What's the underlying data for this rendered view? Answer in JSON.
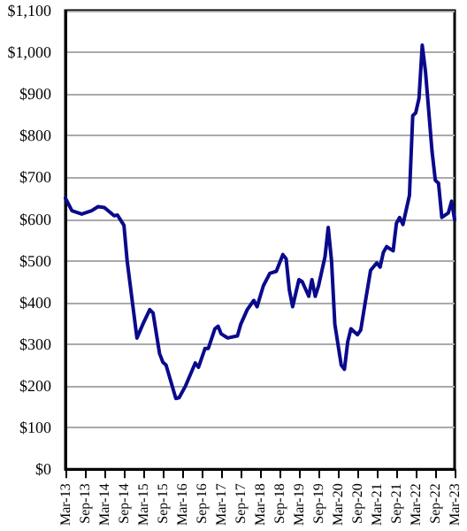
{
  "chart_data": {
    "type": "line",
    "x": [
      "2013-03",
      "2013-05",
      "2013-08",
      "2013-11",
      "2014-01",
      "2014-03",
      "2014-06",
      "2014-07",
      "2014-09",
      "2014-10",
      "2015-01",
      "2015-03",
      "2015-05",
      "2015-06",
      "2015-08",
      "2015-09",
      "2015-10",
      "2016-01",
      "2016-02",
      "2016-04",
      "2016-07",
      "2016-08",
      "2016-10",
      "2016-11",
      "2017-01",
      "2017-02",
      "2017-03",
      "2017-05",
      "2017-08",
      "2017-09",
      "2017-11",
      "2018-01",
      "2018-02",
      "2018-04",
      "2018-06",
      "2018-08",
      "2018-10",
      "2018-11",
      "2018-12",
      "2019-01",
      "2019-03",
      "2019-04",
      "2019-06",
      "2019-07",
      "2019-08",
      "2019-09",
      "2019-11",
      "2019-12",
      "2020-01",
      "2020-02",
      "2020-04",
      "2020-05",
      "2020-06",
      "2020-07",
      "2020-09",
      "2020-10",
      "2020-11",
      "2021-01",
      "2021-03",
      "2021-04",
      "2021-05",
      "2021-06",
      "2021-08",
      "2021-09",
      "2021-10",
      "2021-11",
      "2022-01",
      "2022-02",
      "2022-03",
      "2022-04",
      "2022-05",
      "2022-06",
      "2022-08",
      "2022-09",
      "2022-10",
      "2022-11",
      "2023-01",
      "2023-02",
      "2023-03"
    ],
    "series": [
      {
        "color": "#0a0a8c",
        "values": [
          650,
          620,
          612,
          620,
          630,
          628,
          608,
          610,
          585,
          500,
          315,
          350,
          383,
          375,
          278,
          257,
          250,
          170,
          172,
          200,
          255,
          245,
          290,
          290,
          337,
          343,
          325,
          315,
          320,
          348,
          383,
          405,
          390,
          440,
          470,
          475,
          515,
          505,
          430,
          390,
          455,
          450,
          415,
          455,
          415,
          440,
          510,
          580,
          500,
          348,
          250,
          240,
          306,
          337,
          323,
          334,
          383,
          477,
          495,
          485,
          520,
          534,
          524,
          590,
          604,
          587,
          657,
          848,
          855,
          890,
          1017,
          953,
          763,
          693,
          686,
          604,
          615,
          643,
          598
        ]
      }
    ],
    "xlim": [
      "2013-03",
      "2023-03"
    ],
    "xticks": [
      {
        "value": "2013-03",
        "label": "Mar-13"
      },
      {
        "value": "2013-09",
        "label": "Sep-13"
      },
      {
        "value": "2014-03",
        "label": "Mar-14"
      },
      {
        "value": "2014-09",
        "label": "Sep-14"
      },
      {
        "value": "2015-03",
        "label": "Mar-15"
      },
      {
        "value": "2015-09",
        "label": "Sep-15"
      },
      {
        "value": "2016-03",
        "label": "Mar-16"
      },
      {
        "value": "2016-09",
        "label": "Sep-16"
      },
      {
        "value": "2017-03",
        "label": "Mar-17"
      },
      {
        "value": "2017-09",
        "label": "Sep-17"
      },
      {
        "value": "2018-03",
        "label": "Mar-18"
      },
      {
        "value": "2018-09",
        "label": "Sep-18"
      },
      {
        "value": "2019-03",
        "label": "Mar-19"
      },
      {
        "value": "2019-09",
        "label": "Sep-19"
      },
      {
        "value": "2020-03",
        "label": "Mar-20"
      },
      {
        "value": "2020-09",
        "label": "Sep-20"
      },
      {
        "value": "2021-03",
        "label": "Mar-21"
      },
      {
        "value": "2021-09",
        "label": "Sep-21"
      },
      {
        "value": "2022-03",
        "label": "Mar-22"
      },
      {
        "value": "2022-09",
        "label": "Sep-22"
      },
      {
        "value": "2023-03",
        "label": "Mar-23"
      }
    ],
    "ylim": [
      0,
      1100
    ],
    "yticks": [
      {
        "value": 0,
        "label": "$0"
      },
      {
        "value": 100,
        "label": "$100"
      },
      {
        "value": 200,
        "label": "$200"
      },
      {
        "value": 300,
        "label": "$300"
      },
      {
        "value": 400,
        "label": "$400"
      },
      {
        "value": 500,
        "label": "$500"
      },
      {
        "value": 600,
        "label": "$600"
      },
      {
        "value": 700,
        "label": "$700"
      },
      {
        "value": 800,
        "label": "$800"
      },
      {
        "value": 900,
        "label": "$900"
      },
      {
        "value": 1000,
        "label": "$1,000"
      },
      {
        "value": 1100,
        "label": "$1,100"
      }
    ],
    "grid": "y",
    "marker": "none",
    "line_style": "solid"
  }
}
